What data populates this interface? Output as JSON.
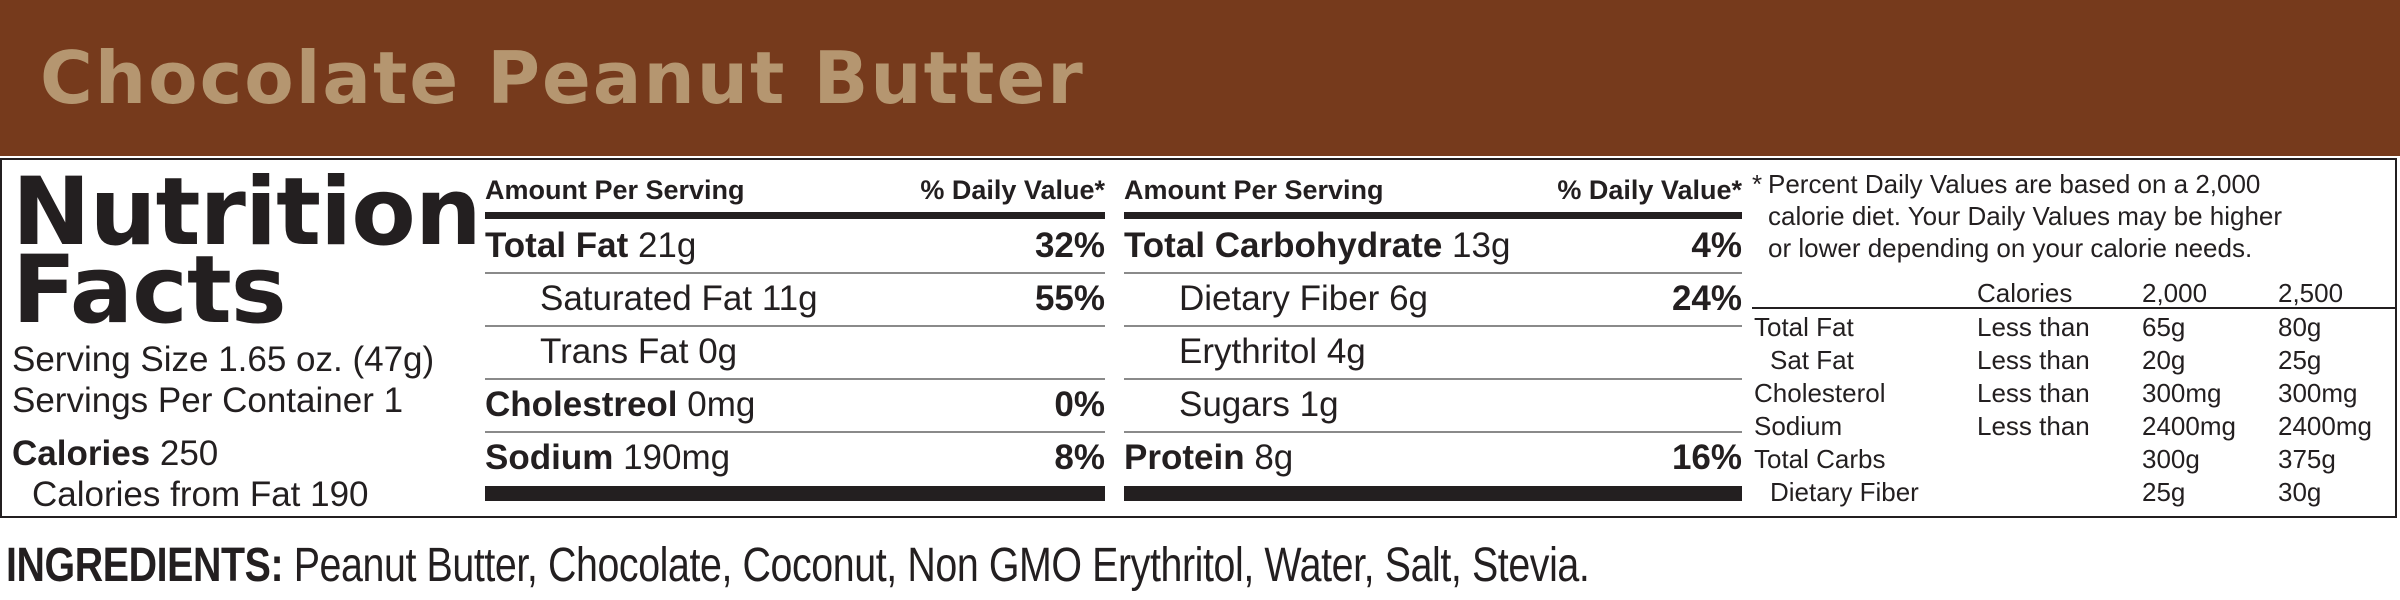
{
  "banner": {
    "title": "Chocolate Peanut Butter"
  },
  "label": {
    "title_line1": "Nutrition",
    "title_line2": "Facts",
    "serving_size": "Serving Size 1.65 oz. (47g)",
    "servings_per_container": "Servings Per Container 1",
    "calories_label": "Calories",
    "calories_value": "250",
    "calories_from_fat": "Calories from Fat 190"
  },
  "columns": [
    {
      "header_left": "Amount Per Serving",
      "header_right": "% Daily Value*",
      "rows": [
        {
          "name": "Total Fat",
          "amount": "21g",
          "dv": "32%",
          "bold": true
        },
        {
          "name": "Saturated Fat",
          "amount": "11g",
          "dv": "55%",
          "bold": false
        },
        {
          "name": "Trans Fat",
          "amount": "0g",
          "dv": "",
          "bold": false
        },
        {
          "name": "Cholestreol",
          "amount": "0mg",
          "dv": "0%",
          "bold": true
        },
        {
          "name": "Sodium",
          "amount": "190mg",
          "dv": "8%",
          "bold": true
        }
      ]
    },
    {
      "header_left": "Amount Per Serving",
      "header_right": "% Daily Value*",
      "rows": [
        {
          "name": "Total Carbohydrate",
          "amount": "13g",
          "dv": "4%",
          "bold": true
        },
        {
          "name": "Dietary Fiber",
          "amount": "6g",
          "dv": "24%",
          "bold": false
        },
        {
          "name": "Erythritol",
          "amount": "4g",
          "dv": "",
          "bold": false
        },
        {
          "name": "Sugars",
          "amount": "1g",
          "dv": "",
          "bold": false
        },
        {
          "name": "Protein",
          "amount": "8g",
          "dv": "16%",
          "bold": true
        }
      ]
    }
  ],
  "footnote": {
    "lines": [
      "Percent Daily Values are based on a 2,000",
      "calorie diet. Your Daily Values may be higher",
      "or lower depending on your calorie needs."
    ],
    "asterisk": "*"
  },
  "dv_table": {
    "headers": [
      "",
      "Calories",
      "2,000",
      "2,500"
    ],
    "rows": [
      [
        "Total Fat",
        "Less than",
        "65g",
        "80g"
      ],
      [
        "Sat Fat",
        "Less than",
        "20g",
        "25g"
      ],
      [
        "Cholesterol",
        "Less than",
        "300mg",
        "300mg"
      ],
      [
        "Sodium",
        "Less than",
        "2400mg",
        "2400mg"
      ],
      [
        "Total Carbs",
        "",
        "300g",
        "375g"
      ],
      [
        "Dietary Fiber",
        "",
        "25g",
        "30g"
      ]
    ]
  },
  "ingredients": {
    "label": "INGREDIENTS:",
    "text": "Peanut Butter, Chocolate, Coconut, Non GMO Erythritol, Water, Salt, Stevia."
  }
}
